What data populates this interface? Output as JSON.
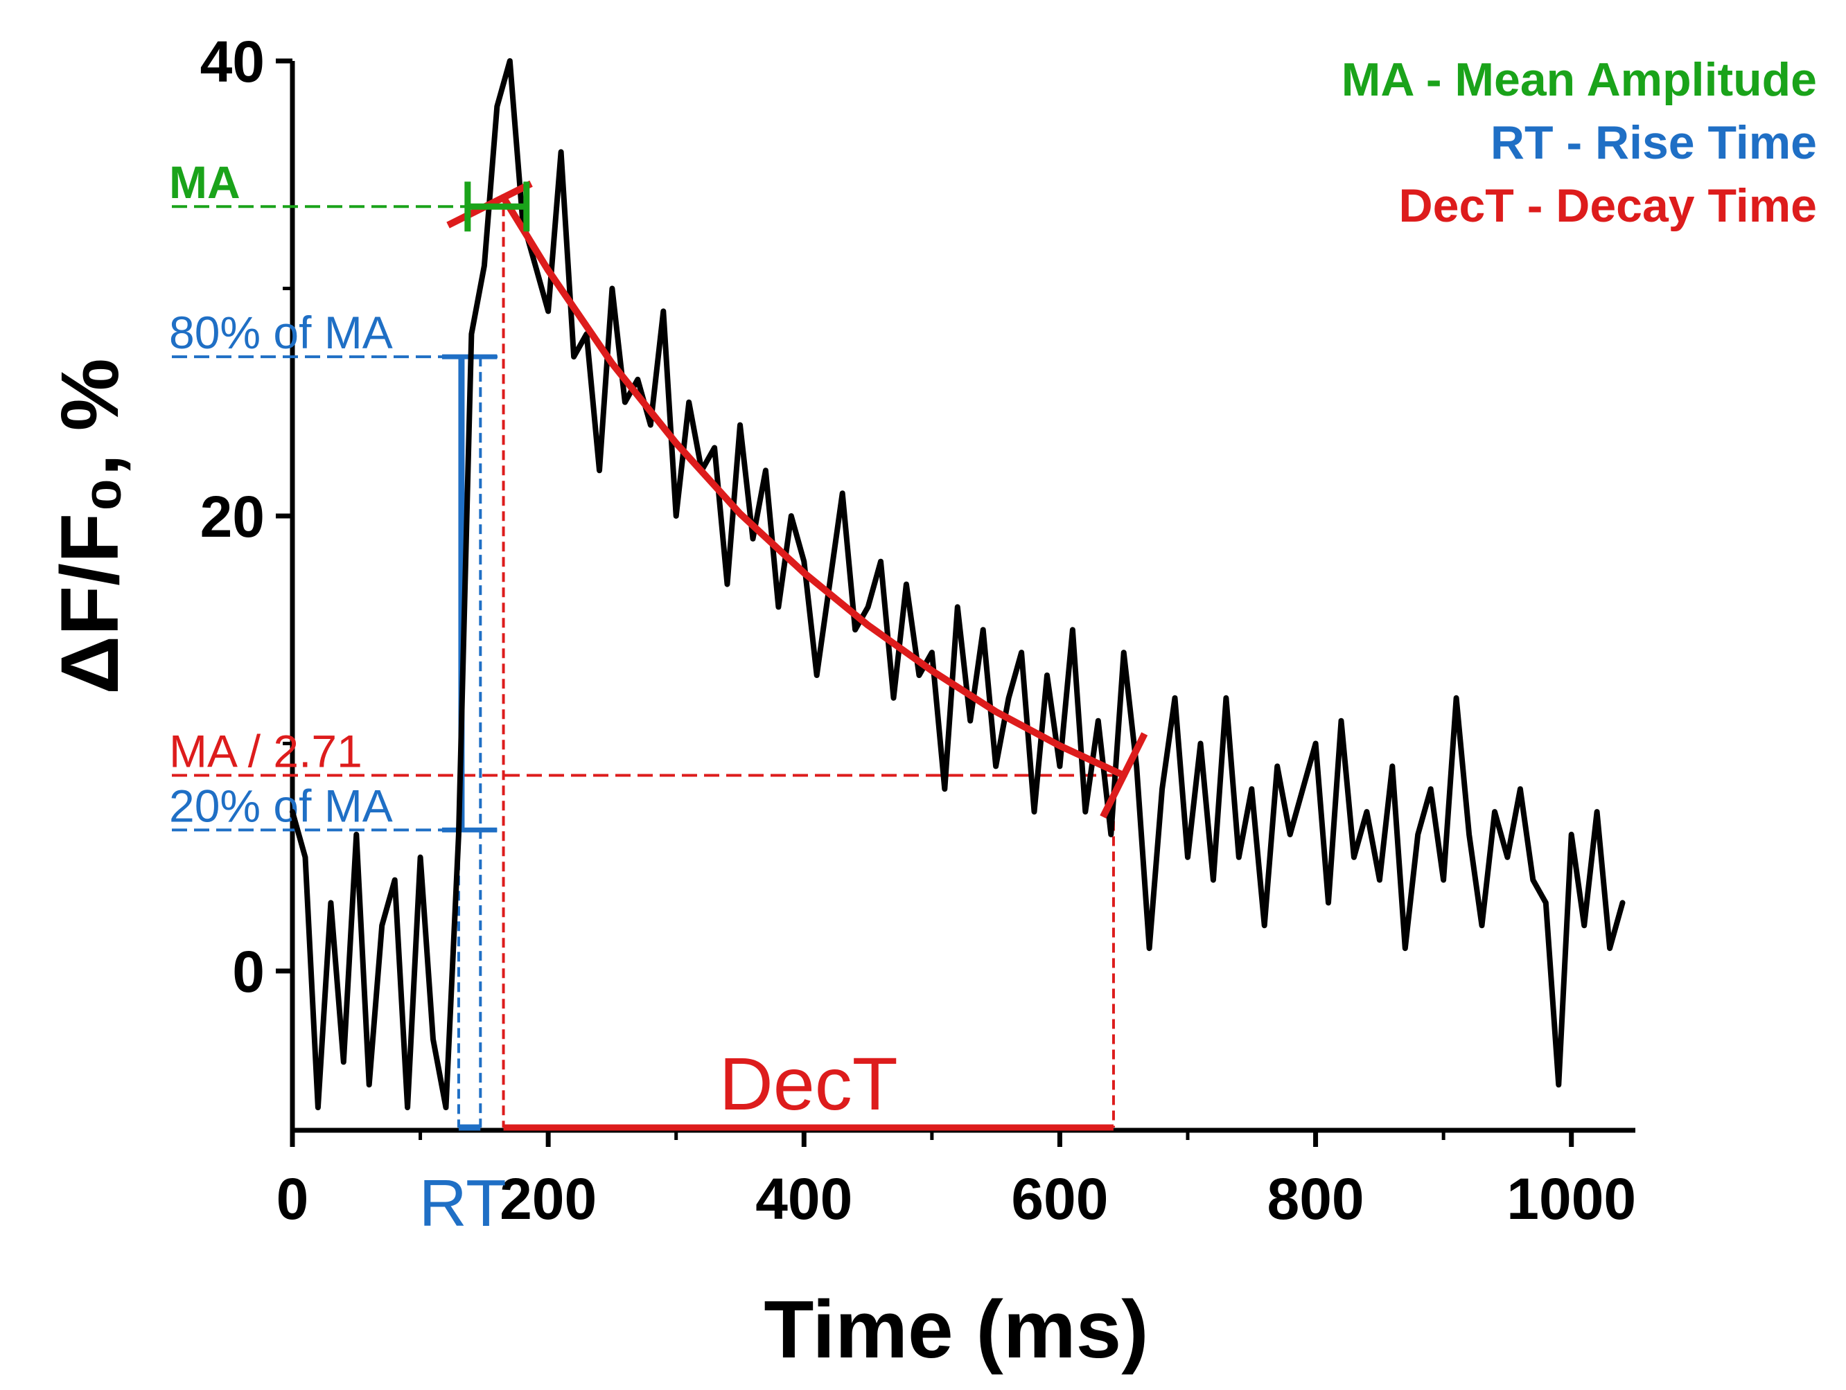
{
  "chart_data": {
    "type": "line",
    "x_label": "Time (ms)",
    "y_label": "ΔF/F₀, %",
    "xlim": [
      0,
      1050
    ],
    "ylim": [
      -7,
      40
    ],
    "xticks": [
      0,
      200,
      400,
      600,
      800,
      1000
    ],
    "yticks": [
      0,
      20,
      40
    ],
    "x_minor_ticks": [
      100,
      300,
      500,
      700,
      900
    ],
    "y_minor_ticks": [
      10,
      30
    ],
    "series": [
      {
        "color": "#000000",
        "width": 8,
        "x": [
          0,
          10,
          20,
          30,
          40,
          50,
          60,
          70,
          80,
          90,
          100,
          110,
          120,
          130,
          140,
          150,
          160,
          170,
          180,
          190,
          200,
          210,
          220,
          230,
          240,
          250,
          260,
          270,
          280,
          290,
          300,
          310,
          320,
          330,
          340,
          350,
          360,
          370,
          380,
          390,
          400,
          410,
          420,
          430,
          440,
          450,
          460,
          470,
          480,
          490,
          500,
          510,
          520,
          530,
          540,
          550,
          560,
          570,
          580,
          590,
          600,
          610,
          620,
          630,
          640,
          650,
          660,
          670,
          680,
          690,
          700,
          710,
          720,
          730,
          740,
          750,
          760,
          770,
          780,
          790,
          800,
          810,
          820,
          830,
          840,
          850,
          860,
          870,
          880,
          890,
          900,
          910,
          920,
          930,
          940,
          950,
          960,
          970,
          980,
          990,
          1000,
          1010,
          1020,
          1030,
          1040
        ],
        "values": [
          7,
          5,
          -6,
          3,
          -4,
          6,
          -5,
          2,
          4,
          -6,
          5,
          -3,
          -6,
          6,
          28,
          31,
          38,
          40,
          33,
          31,
          29,
          36,
          27,
          28,
          22,
          30,
          25,
          26,
          24,
          29,
          20,
          25,
          22,
          23,
          17,
          24,
          19,
          22,
          16,
          20,
          18,
          13,
          17,
          21,
          15,
          16,
          18,
          12,
          17,
          13,
          14,
          8,
          16,
          11,
          15,
          9,
          12,
          14,
          7,
          13,
          9,
          15,
          7,
          11,
          6,
          14,
          9,
          1,
          8,
          12,
          5,
          10,
          4,
          12,
          5,
          8,
          2,
          9,
          6,
          8,
          10,
          3,
          11,
          5,
          7,
          4,
          9,
          1,
          6,
          8,
          4,
          12,
          6,
          2,
          7,
          5,
          8,
          4,
          3,
          -5,
          6,
          2,
          7,
          1,
          3
        ]
      },
      {
        "color": "#dd1c1c",
        "width": 10,
        "x": [
          165,
          200,
          250,
          300,
          350,
          400,
          450,
          500,
          550,
          600,
          650
        ],
        "values": [
          34,
          30.8,
          26.7,
          23.2,
          20.1,
          17.5,
          15.2,
          13.2,
          11.4,
          9.9,
          8.6
        ]
      }
    ],
    "levels": [
      {
        "label": "MA",
        "value": 33.6,
        "to": 137,
        "color": "#1aa31a"
      },
      {
        "label": "80% of MA",
        "value": 27,
        "to": 165,
        "color": "#1f6fc5"
      },
      {
        "label": "MA / 2.71",
        "value": 8.6,
        "to": 642,
        "color": "#dd1c1c"
      },
      {
        "label": "20% of MA",
        "value": 6.2,
        "to": 160,
        "color": "#1f6fc5"
      }
    ],
    "intervals": [
      {
        "label": "RT",
        "range": [
          130,
          147
        ],
        "levels": [
          6.2,
          27
        ],
        "color": "#1f6fc5"
      },
      {
        "label": "DecT",
        "range": [
          165,
          642
        ],
        "levels": [
          33.6,
          8.6
        ],
        "color": "#dd1c1c"
      }
    ],
    "ma_window": {
      "range": [
        137,
        183
      ],
      "value": 33.6,
      "color": "#1aa31a"
    },
    "legend": [
      {
        "text": "MA - Mean Amplitude",
        "color": "#1aa31a"
      },
      {
        "text": "RT - Rise Time",
        "color": "#1f6fc5"
      },
      {
        "text": "DecT - Decay Time",
        "color": "#dd1c1c"
      }
    ]
  }
}
